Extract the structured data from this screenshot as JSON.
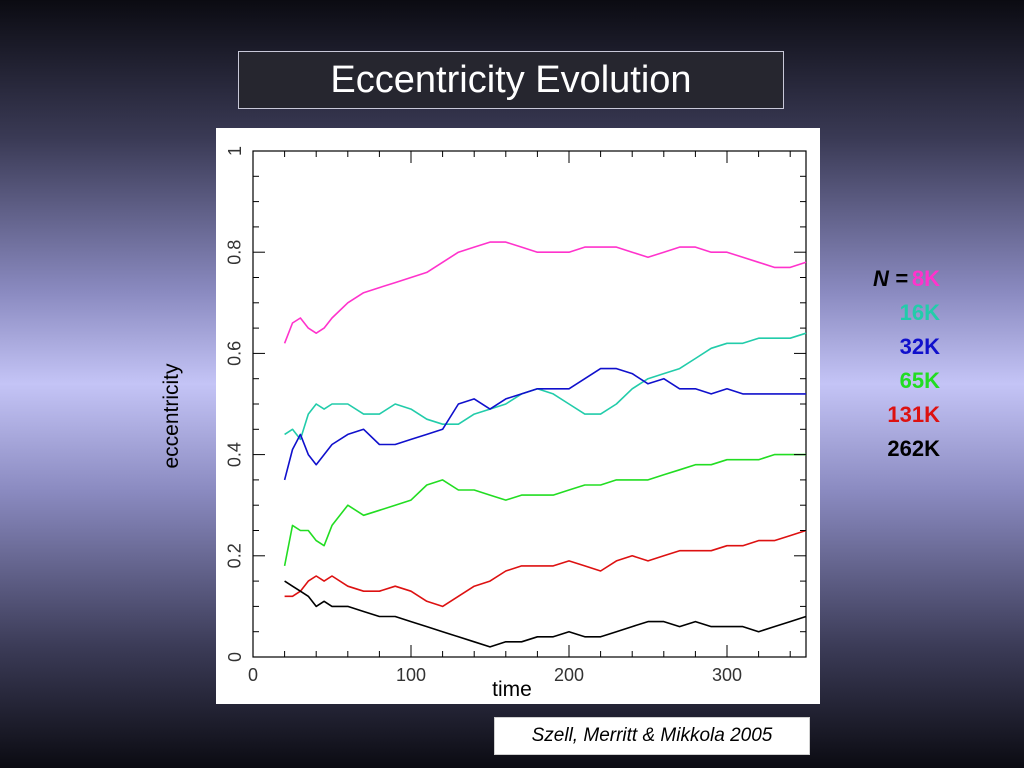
{
  "slide": {
    "title": "Eccentricity Evolution",
    "citation": "Szell, Merritt & Mikkola 2005"
  },
  "legend": {
    "prefix": "N =",
    "entries": [
      {
        "label": "8K",
        "color": "#ff33cc"
      },
      {
        "label": "16K",
        "color": "#22ccaa"
      },
      {
        "label": "32K",
        "color": "#1010cc"
      },
      {
        "label": "65K",
        "color": "#22dd22"
      },
      {
        "label": "131K",
        "color": "#dd1111"
      },
      {
        "label": "262K",
        "color": "#000000"
      }
    ]
  },
  "chart_data": {
    "type": "line",
    "title": "Eccentricity Evolution",
    "xlabel": "time",
    "ylabel": "eccentricity",
    "xlim": [
      0,
      350
    ],
    "ylim": [
      0,
      1
    ],
    "xticks": [
      0,
      100,
      200,
      300
    ],
    "yticks": [
      0,
      0.2,
      0.4,
      0.6,
      0.8,
      1
    ],
    "grid": false,
    "legend_position": "right-outside",
    "x": [
      20,
      25,
      30,
      35,
      40,
      45,
      50,
      60,
      70,
      80,
      90,
      100,
      110,
      120,
      130,
      140,
      150,
      160,
      170,
      180,
      190,
      200,
      210,
      220,
      230,
      240,
      250,
      260,
      270,
      280,
      290,
      300,
      310,
      320,
      330,
      340,
      350
    ],
    "series": [
      {
        "name": "8K",
        "color": "#ff33cc",
        "values": [
          0.62,
          0.66,
          0.67,
          0.65,
          0.64,
          0.65,
          0.67,
          0.7,
          0.72,
          0.73,
          0.74,
          0.75,
          0.76,
          0.78,
          0.8,
          0.81,
          0.82,
          0.82,
          0.81,
          0.8,
          0.8,
          0.8,
          0.81,
          0.81,
          0.81,
          0.8,
          0.79,
          0.8,
          0.81,
          0.81,
          0.8,
          0.8,
          0.79,
          0.78,
          0.77,
          0.77,
          0.78
        ]
      },
      {
        "name": "16K",
        "color": "#22ccaa",
        "values": [
          0.44,
          0.45,
          0.43,
          0.48,
          0.5,
          0.49,
          0.5,
          0.5,
          0.48,
          0.48,
          0.5,
          0.49,
          0.47,
          0.46,
          0.46,
          0.48,
          0.49,
          0.5,
          0.52,
          0.53,
          0.52,
          0.5,
          0.48,
          0.48,
          0.5,
          0.53,
          0.55,
          0.56,
          0.57,
          0.59,
          0.61,
          0.62,
          0.62,
          0.63,
          0.63,
          0.63,
          0.64
        ]
      },
      {
        "name": "32K",
        "color": "#1010cc",
        "values": [
          0.35,
          0.41,
          0.44,
          0.4,
          0.38,
          0.4,
          0.42,
          0.44,
          0.45,
          0.42,
          0.42,
          0.43,
          0.44,
          0.45,
          0.5,
          0.51,
          0.49,
          0.51,
          0.52,
          0.53,
          0.53,
          0.53,
          0.55,
          0.57,
          0.57,
          0.56,
          0.54,
          0.55,
          0.53,
          0.53,
          0.52,
          0.53,
          0.52,
          0.52,
          0.52,
          0.52,
          0.52
        ]
      },
      {
        "name": "65K",
        "color": "#22dd22",
        "values": [
          0.18,
          0.26,
          0.25,
          0.25,
          0.23,
          0.22,
          0.26,
          0.3,
          0.28,
          0.29,
          0.3,
          0.31,
          0.34,
          0.35,
          0.33,
          0.33,
          0.32,
          0.31,
          0.32,
          0.32,
          0.32,
          0.33,
          0.34,
          0.34,
          0.35,
          0.35,
          0.35,
          0.36,
          0.37,
          0.38,
          0.38,
          0.39,
          0.39,
          0.39,
          0.4,
          0.4,
          0.4
        ]
      },
      {
        "name": "131K",
        "color": "#dd1111",
        "values": [
          0.12,
          0.12,
          0.13,
          0.15,
          0.16,
          0.15,
          0.16,
          0.14,
          0.13,
          0.13,
          0.14,
          0.13,
          0.11,
          0.1,
          0.12,
          0.14,
          0.15,
          0.17,
          0.18,
          0.18,
          0.18,
          0.19,
          0.18,
          0.17,
          0.19,
          0.2,
          0.19,
          0.2,
          0.21,
          0.21,
          0.21,
          0.22,
          0.22,
          0.23,
          0.23,
          0.24,
          0.25
        ]
      },
      {
        "name": "262K",
        "color": "#000000",
        "values": [
          0.15,
          0.14,
          0.13,
          0.12,
          0.1,
          0.11,
          0.1,
          0.1,
          0.09,
          0.08,
          0.08,
          0.07,
          0.06,
          0.05,
          0.04,
          0.03,
          0.02,
          0.03,
          0.03,
          0.04,
          0.04,
          0.05,
          0.04,
          0.04,
          0.05,
          0.06,
          0.07,
          0.07,
          0.06,
          0.07,
          0.06,
          0.06,
          0.06,
          0.05,
          0.06,
          0.07,
          0.08
        ]
      }
    ]
  }
}
